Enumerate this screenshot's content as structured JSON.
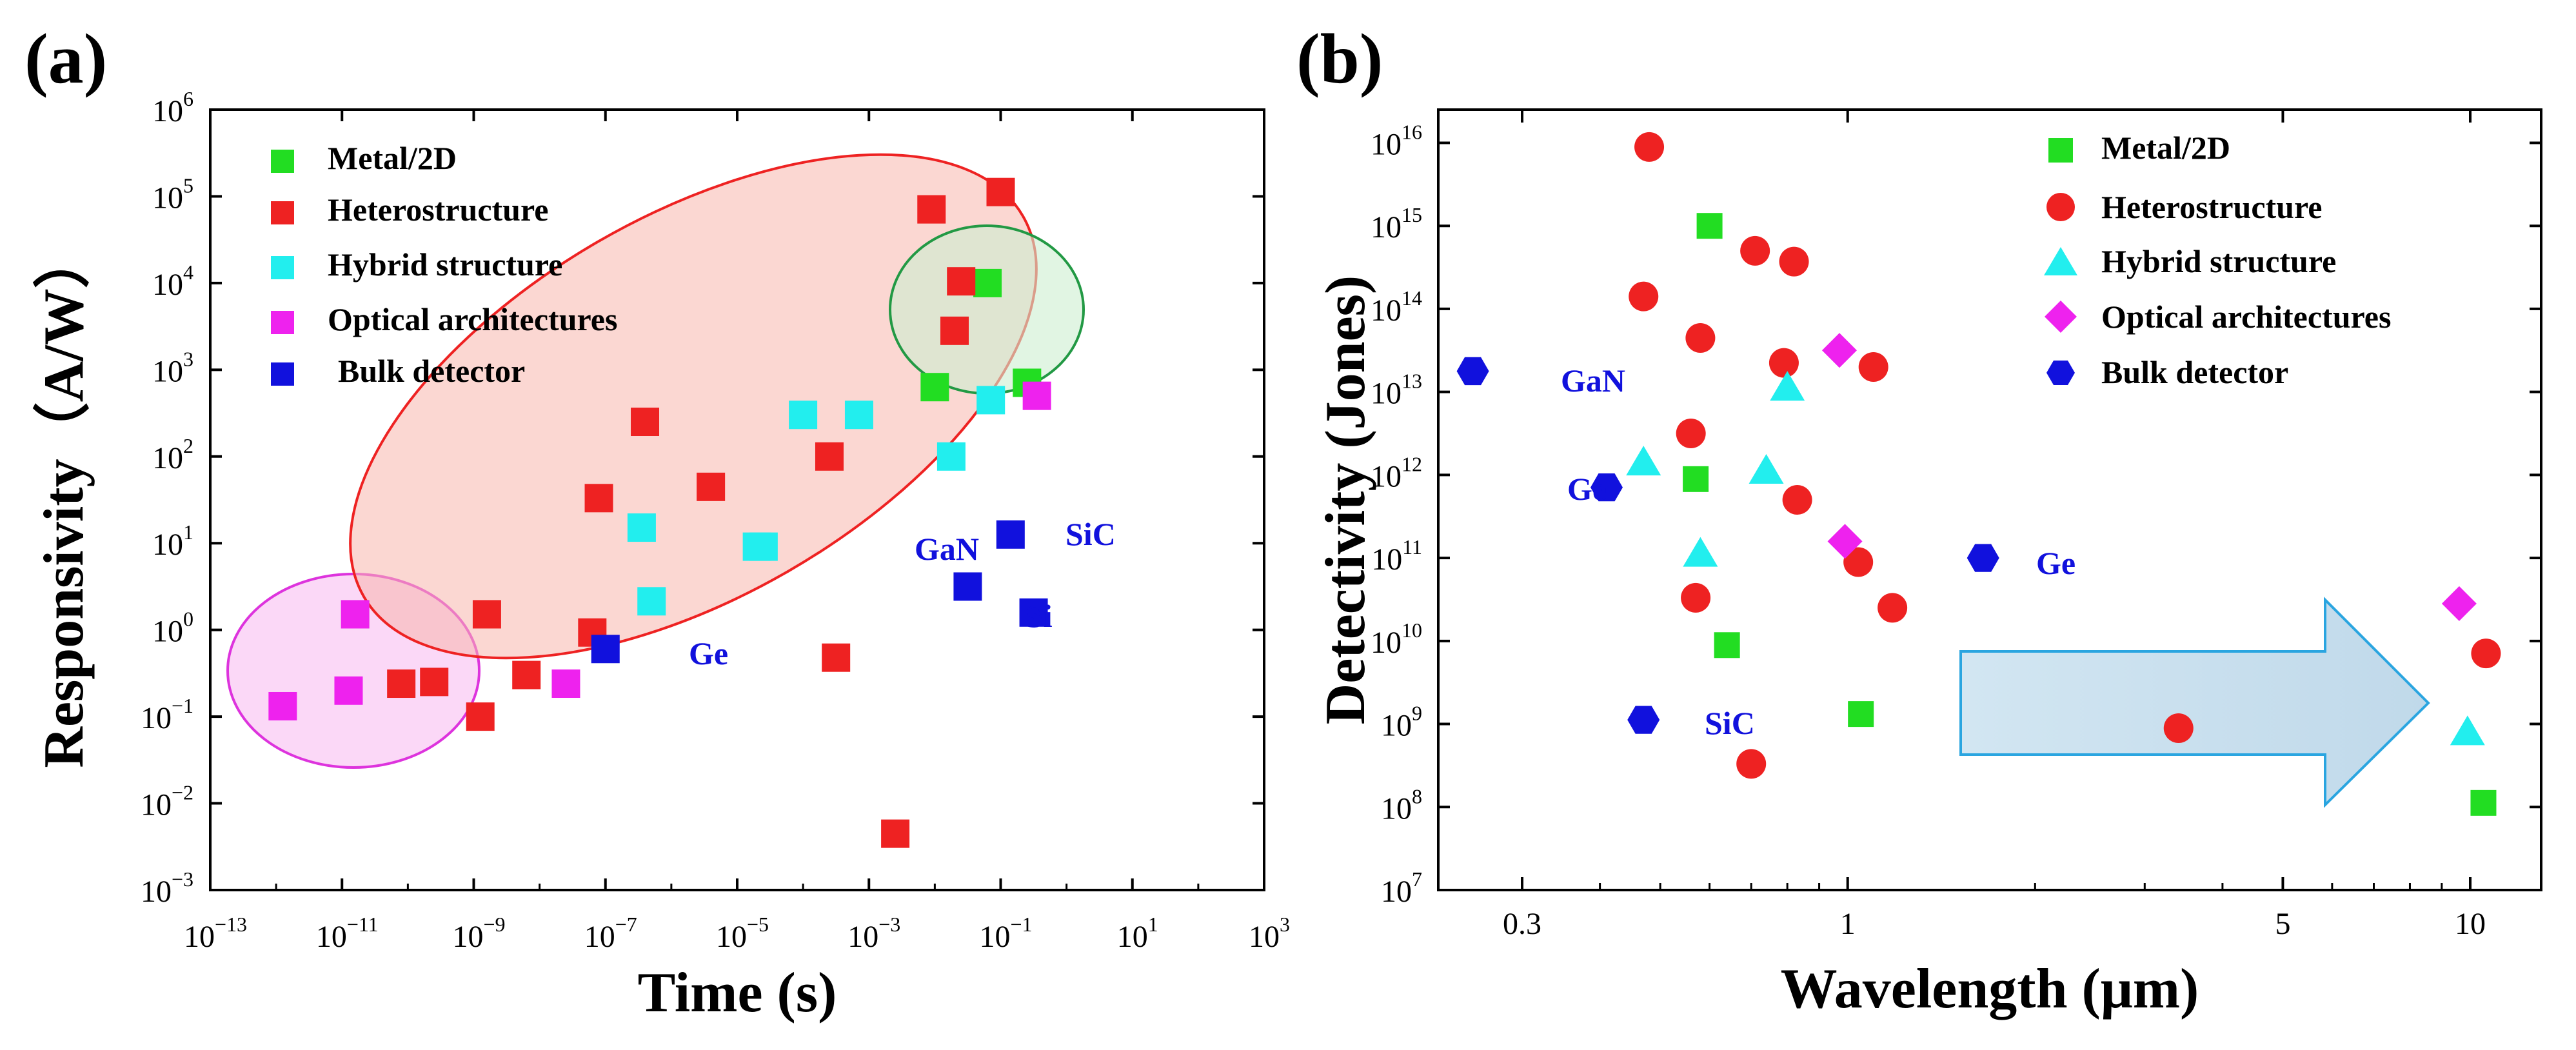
{
  "chart_data": [
    {
      "id": "a",
      "panel_label": "(a)",
      "type": "scatter",
      "xlabel": "Time (s)",
      "ylabel": "Responsivity（A/W）",
      "xscale": "log",
      "yscale": "log",
      "xlim_exp": [
        -13,
        3
      ],
      "ylim_exp": [
        -3,
        6
      ],
      "xticks": [
        {
          "base": "10",
          "exp": "−13",
          "e": -13
        },
        {
          "base": "10",
          "exp": "−11",
          "e": -11
        },
        {
          "base": "10",
          "exp": "−9",
          "e": -9
        },
        {
          "base": "10",
          "exp": "−7",
          "e": -7
        },
        {
          "base": "10",
          "exp": "−5",
          "e": -5
        },
        {
          "base": "10",
          "exp": "−3",
          "e": -3
        },
        {
          "base": "10",
          "exp": "−1",
          "e": -1
        },
        {
          "base": "10",
          "exp": "1",
          "e": 1
        },
        {
          "base": "10",
          "exp": "3",
          "e": 3
        }
      ],
      "yticks": [
        {
          "base": "10",
          "exp": "−3",
          "e": -3
        },
        {
          "base": "10",
          "exp": "−2",
          "e": -2
        },
        {
          "base": "10",
          "exp": "−1",
          "e": -1
        },
        {
          "base": "10",
          "exp": "0",
          "e": 0
        },
        {
          "base": "10",
          "exp": "1",
          "e": 1
        },
        {
          "base": "10",
          "exp": "2",
          "e": 2
        },
        {
          "base": "10",
          "exp": "3",
          "e": 3
        },
        {
          "base": "10",
          "exp": "4",
          "e": 4
        },
        {
          "base": "10",
          "exp": "5",
          "e": 5
        },
        {
          "base": "10",
          "exp": "6",
          "e": 6
        }
      ],
      "series": [
        {
          "name": "Metal/2D",
          "color": "#22dd22",
          "marker": "square",
          "points": [
            [
              -1.2,
              4.0
            ],
            [
              -2.0,
              2.8
            ],
            [
              -0.6,
              2.85
            ]
          ]
        },
        {
          "name": "Heterostructure",
          "color": "#ee2222",
          "marker": "square",
          "points": [
            [
              -8.8,
              0.18
            ],
            [
              -8.9,
              -1.0
            ],
            [
              -8.2,
              -0.52
            ],
            [
              -9.6,
              -0.6
            ],
            [
              -7.1,
              1.52
            ],
            [
              -7.2,
              -0.03
            ],
            [
              -6.4,
              2.4
            ],
            [
              -5.4,
              1.65
            ],
            [
              -3.6,
              2.0
            ],
            [
              -3.5,
              -0.32
            ],
            [
              -2.6,
              -2.35
            ],
            [
              -2.05,
              4.85
            ],
            [
              -1.7,
              3.45
            ],
            [
              -1.6,
              4.02
            ],
            [
              -1.0,
              5.05
            ],
            [
              -10.1,
              -0.62
            ]
          ]
        },
        {
          "name": "Hybrid structure",
          "color": "#22eeee",
          "marker": "square",
          "points": [
            [
              -6.3,
              0.33
            ],
            [
              -6.45,
              1.18
            ],
            [
              -4.7,
              0.96
            ],
            [
              -4.6,
              0.96
            ],
            [
              -4.0,
              2.48
            ],
            [
              -3.15,
              2.48
            ],
            [
              -1.75,
              2.0
            ],
            [
              -1.15,
              2.65
            ]
          ]
        },
        {
          "name": "Optical architectures",
          "color": "#ee22ee",
          "marker": "square",
          "points": [
            [
              -11.9,
              -0.88
            ],
            [
              -10.9,
              -0.7
            ],
            [
              -10.8,
              0.18
            ],
            [
              -7.6,
              -0.62
            ],
            [
              -0.45,
              2.7
            ]
          ]
        },
        {
          "name": "Bulk detector",
          "color": "#1111dd",
          "marker": "square",
          "points": [
            [
              -7.0,
              -0.22
            ],
            [
              -1.5,
              0.5
            ],
            [
              -0.5,
              0.2
            ],
            [
              -0.85,
              1.1
            ]
          ]
        }
      ],
      "annotations": [
        "Ge",
        "GaN",
        "SiC",
        "Si"
      ]
    },
    {
      "id": "b",
      "panel_label": "(b)",
      "type": "scatter",
      "xlabel": "Wavelength (μm)",
      "ylabel": "Detectivity (Jones)",
      "xscale": "log",
      "yscale": "log",
      "xlim": [
        0.22,
        13.0
      ],
      "ylim_exp": [
        7,
        16.4
      ],
      "xticks": [
        "0.3",
        "1",
        "5",
        "10"
      ],
      "xtick_values": [
        0.3,
        1,
        5,
        10
      ],
      "yticks": [
        {
          "base": "10",
          "exp": "7",
          "e": 7
        },
        {
          "base": "10",
          "exp": "8",
          "e": 8
        },
        {
          "base": "10",
          "exp": "9",
          "e": 9
        },
        {
          "base": "10",
          "exp": "10",
          "e": 10
        },
        {
          "base": "10",
          "exp": "11",
          "e": 11
        },
        {
          "base": "10",
          "exp": "12",
          "e": 12
        },
        {
          "base": "10",
          "exp": "13",
          "e": 13
        },
        {
          "base": "10",
          "exp": "14",
          "e": 14
        },
        {
          "base": "10",
          "exp": "15",
          "e": 15
        },
        {
          "base": "10",
          "exp": "16",
          "e": 16
        }
      ],
      "series": [
        {
          "name": "Metal/2D",
          "color": "#22dd22",
          "marker": "square",
          "points": [
            [
              0.6,
              15.0
            ],
            [
              0.57,
              11.95
            ],
            [
              0.64,
              9.95
            ],
            [
              1.05,
              9.12
            ],
            [
              10.5,
              8.05
            ]
          ]
        },
        {
          "name": "Heterostructure",
          "color": "#ee2222",
          "marker": "circle",
          "points": [
            [
              0.48,
              15.95
            ],
            [
              0.47,
              14.15
            ],
            [
              0.56,
              12.5
            ],
            [
              0.58,
              13.65
            ],
            [
              0.71,
              14.7
            ],
            [
              0.82,
              14.57
            ],
            [
              0.79,
              13.35
            ],
            [
              0.57,
              10.52
            ],
            [
              0.83,
              11.7
            ],
            [
              1.04,
              10.95
            ],
            [
              1.1,
              13.3
            ],
            [
              1.18,
              10.4
            ],
            [
              0.7,
              8.52
            ],
            [
              3.4,
              8.95
            ],
            [
              10.6,
              9.85
            ]
          ]
        },
        {
          "name": "Hybrid structure",
          "color": "#22eeee",
          "marker": "triangle",
          "points": [
            [
              0.47,
              12.15
            ],
            [
              0.58,
              11.05
            ],
            [
              0.74,
              12.05
            ],
            [
              0.8,
              13.05
            ],
            [
              9.9,
              8.9
            ]
          ]
        },
        {
          "name": "Optical architectures",
          "color": "#ee22ee",
          "marker": "diamond",
          "points": [
            [
              0.97,
              13.5
            ],
            [
              0.99,
              11.2
            ],
            [
              9.6,
              10.45
            ]
          ]
        },
        {
          "name": "Bulk detector",
          "color": "#1111dd",
          "marker": "hexagon",
          "points": [
            [
              0.25,
              13.25
            ],
            [
              0.41,
              11.85
            ],
            [
              0.47,
              9.05
            ],
            [
              1.65,
              11.0
            ]
          ]
        }
      ],
      "annotations": [
        "GaN",
        "Ge",
        "SiC",
        "Ge"
      ]
    }
  ]
}
